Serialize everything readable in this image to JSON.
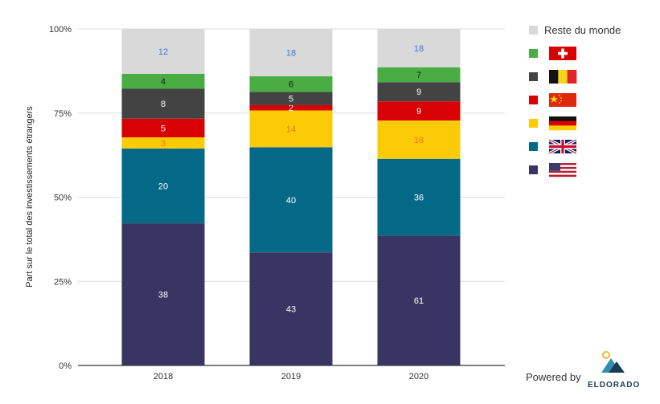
{
  "chart_data": {
    "type": "bar",
    "stacked": true,
    "normalized": true,
    "categories": [
      "2018",
      "2019",
      "2020"
    ],
    "ylabel": "Part sur le total des investissements étrangers",
    "yticks": [
      "0%",
      "25%",
      "50%",
      "75%",
      "100%"
    ],
    "ylim": [
      0,
      100
    ],
    "grid": true,
    "legend_position": "right",
    "series": [
      {
        "key": "us",
        "legend_icon": "us-flag-icon",
        "color": "#383563",
        "label_color": "#ffffff",
        "values": [
          38,
          43,
          61
        ]
      },
      {
        "key": "uk",
        "legend_icon": "uk-flag-icon",
        "color": "#046987",
        "label_color": "#ffffff",
        "values": [
          20,
          40,
          36
        ]
      },
      {
        "key": "de",
        "legend_icon": "germany-flag-icon",
        "color": "#fbcb07",
        "label_color": "#f07820",
        "values": [
          3,
          14,
          18
        ]
      },
      {
        "key": "cn",
        "legend_icon": "china-flag-icon",
        "color": "#d80104",
        "label_color": "#ffffff",
        "values": [
          5,
          2,
          9
        ]
      },
      {
        "key": "be",
        "legend_icon": "belgium-flag-icon",
        "color": "#434343",
        "label_color": "#ffffff",
        "values": [
          8,
          5,
          9
        ]
      },
      {
        "key": "ch",
        "legend_icon": "switzerland-flag-icon",
        "color": "#4aad44",
        "label_color": "#1a1a1a",
        "values": [
          4,
          6,
          7
        ]
      },
      {
        "key": "rest",
        "name": "Reste du monde",
        "color": "#d9d9d9",
        "label_color": "#3c78d8",
        "values": [
          12,
          18,
          18
        ]
      }
    ]
  },
  "footer": {
    "powered_by": "Powered by",
    "brand": "ELDORADO"
  },
  "colors": {
    "grid": "#dddddd",
    "axis": "#333333",
    "brand_navy": "#1c3a52",
    "brand_gold": "#f2b632",
    "brand_teal": "#2e8fb0"
  }
}
